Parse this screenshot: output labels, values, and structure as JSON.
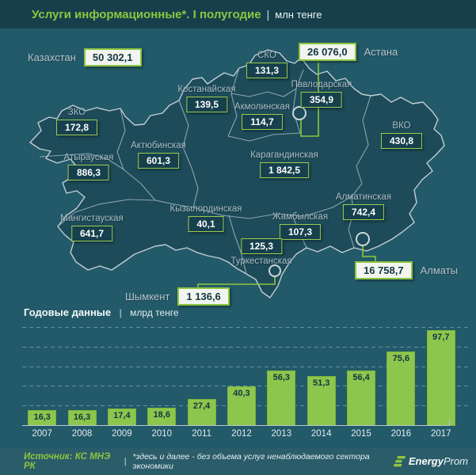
{
  "header": {
    "title": "Услуги информационные*. I полугодие",
    "separator": "|",
    "unit": "млн тенге"
  },
  "map": {
    "country": {
      "label": "Казахстан",
      "value": "50 302,1"
    },
    "regions": [
      {
        "id": "sko",
        "name": "СКО",
        "value": "131,3"
      },
      {
        "id": "kostanay",
        "name": "Костанайская",
        "value": "139,5"
      },
      {
        "id": "pavlodar",
        "name": "Павлодарская",
        "value": "354,9"
      },
      {
        "id": "akmola",
        "name": "Акмолинская",
        "value": "114,7"
      },
      {
        "id": "zko",
        "name": "ЗКО",
        "value": "172,8"
      },
      {
        "id": "aktobe",
        "name": "Актюбинская",
        "value": "601,3"
      },
      {
        "id": "karaganda",
        "name": "Карагандинская",
        "value": "1 842,5"
      },
      {
        "id": "vko",
        "name": "ВКО",
        "value": "430,8"
      },
      {
        "id": "atyrau",
        "name": "Атырауская",
        "value": "886,3"
      },
      {
        "id": "mangystau",
        "name": "Мангистауская",
        "value": "641,7"
      },
      {
        "id": "kyzylorda",
        "name": "Кызылординская",
        "value": "40,1"
      },
      {
        "id": "zhambyl",
        "name": "Жамбылская",
        "value": "107,3"
      },
      {
        "id": "turkestan",
        "name": "Туркестанская",
        "value": "125,3"
      },
      {
        "id": "almaty_region",
        "name": "Алматинская",
        "value": "742,4"
      }
    ],
    "cities": [
      {
        "id": "astana",
        "name": "Астана",
        "value": "26 076,0"
      },
      {
        "id": "almaty",
        "name": "Алматы",
        "value": "16 758,7"
      },
      {
        "id": "shymkent",
        "name": "Шымкент",
        "value": "1 136,6"
      }
    ]
  },
  "chart_data": {
    "type": "bar",
    "title": "Годовые данные",
    "separator": "|",
    "unit": "млрд тенге",
    "categories": [
      "2007",
      "2008",
      "2009",
      "2010",
      "2011",
      "2012",
      "2013",
      "2014",
      "2015",
      "2016",
      "2017"
    ],
    "values": [
      16.3,
      16.3,
      17.4,
      18.6,
      27.4,
      40.3,
      56.3,
      51.3,
      56.4,
      75.6,
      97.7
    ],
    "value_labels": [
      "16,3",
      "16,3",
      "17,4",
      "18,6",
      "27,4",
      "40,3",
      "56,3",
      "51,3",
      "56,4",
      "75,6",
      "97,7"
    ],
    "xlabel": "",
    "ylabel": "",
    "ylim": [
      0,
      105
    ],
    "grid_step": 20,
    "grid": "dashed-horizontal",
    "legend": "none"
  },
  "footer": {
    "source": "Источник: КС МНЭ РК",
    "separator": "|",
    "note": "*здесь и далее - без объема услуг ненаблюдаемого сектора экономики",
    "logo": {
      "energy": "Energy",
      "prom": "Prom"
    }
  },
  "colors": {
    "accent_green": "#8cc63f",
    "bar_green": "#8dc64d",
    "background_teal": "#235a69",
    "map_fill": "#1d4b59",
    "value_box_fill": "#16404d",
    "callout_box_fill": "#f2f5ef",
    "label_gray": "#a9bec8"
  }
}
